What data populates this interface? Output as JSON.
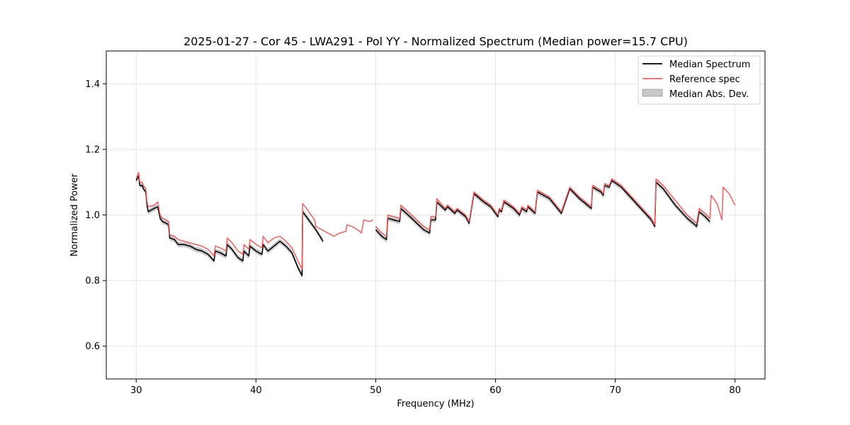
{
  "chart_data": {
    "type": "line",
    "title": "2025-01-27 - Cor 45 - LWA291 - Pol YY - Normalized Spectrum (Median power=15.7 CPU)",
    "xlabel": "Frequency (MHz)",
    "ylabel": "Normalized Power",
    "xlim": [
      27.5,
      82.5
    ],
    "ylim": [
      0.5,
      1.5
    ],
    "xticks": [
      30,
      40,
      50,
      60,
      70,
      80
    ],
    "yticks": [
      0.6,
      0.8,
      1.0,
      1.2,
      1.4
    ],
    "xtick_labels": [
      "30",
      "40",
      "50",
      "60",
      "70",
      "80"
    ],
    "ytick_labels": [
      "0.6",
      "0.8",
      "1.0",
      "1.2",
      "1.4"
    ],
    "grid": true,
    "legend_position": "top-right",
    "legend": {
      "median": "Median Spectrum",
      "reference": "Reference spec",
      "mad": "Median Abs. Dev."
    },
    "colors": {
      "median": "#000000",
      "reference": "#f06060",
      "mad": "#c8c8c8",
      "grid": "#e4e4e4"
    },
    "series": [
      {
        "name": "Median Spectrum",
        "mad_width": 0.008,
        "segments": [
          [
            [
              30.0,
              1.105
            ],
            [
              30.2,
              1.12
            ],
            [
              30.3,
              1.09
            ],
            [
              30.5,
              1.09
            ],
            [
              30.6,
              1.08
            ],
            [
              30.8,
              1.07
            ],
            [
              30.9,
              1.03
            ],
            [
              31.0,
              1.01
            ],
            [
              31.5,
              1.02
            ],
            [
              31.8,
              1.025
            ],
            [
              32.0,
              0.99
            ],
            [
              32.2,
              0.98
            ],
            [
              32.5,
              0.975
            ],
            [
              32.7,
              0.97
            ],
            [
              32.8,
              0.93
            ],
            [
              33.2,
              0.925
            ],
            [
              33.5,
              0.91
            ],
            [
              34.0,
              0.91
            ],
            [
              34.5,
              0.905
            ],
            [
              35.0,
              0.895
            ],
            [
              35.5,
              0.89
            ],
            [
              36.0,
              0.88
            ],
            [
              36.5,
              0.86
            ],
            [
              36.6,
              0.89
            ],
            [
              37.0,
              0.885
            ],
            [
              37.5,
              0.875
            ],
            [
              37.6,
              0.91
            ],
            [
              38.0,
              0.895
            ],
            [
              38.5,
              0.87
            ],
            [
              38.9,
              0.86
            ],
            [
              39.0,
              0.89
            ],
            [
              39.4,
              0.875
            ],
            [
              39.5,
              0.905
            ],
            [
              40.0,
              0.89
            ],
            [
              40.5,
              0.88
            ],
            [
              40.6,
              0.91
            ],
            [
              41.0,
              0.89
            ],
            [
              41.5,
              0.905
            ],
            [
              42.0,
              0.92
            ],
            [
              42.5,
              0.905
            ],
            [
              43.0,
              0.885
            ],
            [
              43.5,
              0.84
            ],
            [
              43.85,
              0.815
            ],
            [
              43.9,
              1.01
            ],
            [
              44.5,
              0.98
            ],
            [
              45.0,
              0.955
            ],
            [
              45.6,
              0.92
            ]
          ],
          [
            [
              50.0,
              0.955
            ],
            [
              50.5,
              0.935
            ],
            [
              50.9,
              0.925
            ],
            [
              51.0,
              0.99
            ],
            [
              51.5,
              0.985
            ],
            [
              52.0,
              0.98
            ],
            [
              52.1,
              1.02
            ],
            [
              53.0,
              0.99
            ],
            [
              54.0,
              0.955
            ],
            [
              54.5,
              0.945
            ],
            [
              54.6,
              0.985
            ],
            [
              55.0,
              0.985
            ],
            [
              55.1,
              1.04
            ],
            [
              55.8,
              1.015
            ],
            [
              56.0,
              1.025
            ],
            [
              56.6,
              1.005
            ],
            [
              56.8,
              1.015
            ],
            [
              57.5,
              0.995
            ],
            [
              57.8,
              0.975
            ],
            [
              58.2,
              1.065
            ],
            [
              59.0,
              1.04
            ],
            [
              59.6,
              1.025
            ],
            [
              60.2,
              0.995
            ],
            [
              60.3,
              1.015
            ],
            [
              60.5,
              1.01
            ],
            [
              60.7,
              1.04
            ],
            [
              61.5,
              1.02
            ],
            [
              62.0,
              1.0
            ],
            [
              62.2,
              1.02
            ],
            [
              62.6,
              1.01
            ],
            [
              62.7,
              1.025
            ],
            [
              63.3,
              1.005
            ],
            [
              63.5,
              1.07
            ],
            [
              64.5,
              1.05
            ],
            [
              65.5,
              1.005
            ],
            [
              66.2,
              1.08
            ],
            [
              67.0,
              1.05
            ],
            [
              68.0,
              1.02
            ],
            [
              68.1,
              1.085
            ],
            [
              68.8,
              1.07
            ],
            [
              69.0,
              1.06
            ],
            [
              69.1,
              1.09
            ],
            [
              69.5,
              1.085
            ],
            [
              69.7,
              1.105
            ],
            [
              70.5,
              1.085
            ],
            [
              71.0,
              1.065
            ],
            [
              72.0,
              1.025
            ],
            [
              73.0,
              0.985
            ],
            [
              73.3,
              0.965
            ],
            [
              73.4,
              1.1
            ],
            [
              74.0,
              1.08
            ],
            [
              75.0,
              1.03
            ],
            [
              76.0,
              0.99
            ],
            [
              76.5,
              0.975
            ],
            [
              76.8,
              0.965
            ],
            [
              77.0,
              1.01
            ],
            [
              77.5,
              0.995
            ],
            [
              77.9,
              0.98
            ]
          ]
        ]
      },
      {
        "name": "Reference spec",
        "segments": [
          [
            [
              30.0,
              1.11
            ],
            [
              30.2,
              1.13
            ],
            [
              30.3,
              1.1
            ],
            [
              30.5,
              1.1
            ],
            [
              30.6,
              1.09
            ],
            [
              30.8,
              1.08
            ],
            [
              30.9,
              1.04
            ],
            [
              31.0,
              1.025
            ],
            [
              31.5,
              1.03
            ],
            [
              31.8,
              1.04
            ],
            [
              32.0,
              1.0
            ],
            [
              32.2,
              0.99
            ],
            [
              32.5,
              0.985
            ],
            [
              32.7,
              0.98
            ],
            [
              32.8,
              0.94
            ],
            [
              33.2,
              0.935
            ],
            [
              33.5,
              0.925
            ],
            [
              34.0,
              0.92
            ],
            [
              34.5,
              0.915
            ],
            [
              35.0,
              0.91
            ],
            [
              35.5,
              0.905
            ],
            [
              36.0,
              0.895
            ],
            [
              36.5,
              0.875
            ],
            [
              36.6,
              0.905
            ],
            [
              37.0,
              0.9
            ],
            [
              37.5,
              0.89
            ],
            [
              37.6,
              0.93
            ],
            [
              38.0,
              0.915
            ],
            [
              38.5,
              0.89
            ],
            [
              38.9,
              0.88
            ],
            [
              39.0,
              0.91
            ],
            [
              39.4,
              0.895
            ],
            [
              39.5,
              0.925
            ],
            [
              40.0,
              0.91
            ],
            [
              40.5,
              0.9
            ],
            [
              40.6,
              0.935
            ],
            [
              41.0,
              0.915
            ],
            [
              41.5,
              0.93
            ],
            [
              42.0,
              0.935
            ],
            [
              42.5,
              0.92
            ],
            [
              43.0,
              0.9
            ],
            [
              43.5,
              0.86
            ],
            [
              43.85,
              0.835
            ],
            [
              43.9,
              1.035
            ],
            [
              44.5,
              1.005
            ],
            [
              44.9,
              0.985
            ],
            [
              45.0,
              0.965
            ],
            [
              45.5,
              0.955
            ],
            [
              46.0,
              0.945
            ],
            [
              46.5,
              0.935
            ],
            [
              47.0,
              0.945
            ],
            [
              47.5,
              0.95
            ],
            [
              47.6,
              0.97
            ],
            [
              48.0,
              0.965
            ],
            [
              48.5,
              0.955
            ],
            [
              48.8,
              0.945
            ],
            [
              49.0,
              0.985
            ],
            [
              49.5,
              0.98
            ],
            [
              49.8,
              0.985
            ]
          ],
          [
            [
              50.0,
              0.965
            ],
            [
              50.5,
              0.945
            ],
            [
              50.9,
              0.935
            ],
            [
              51.0,
              1.0
            ],
            [
              51.5,
              0.995
            ],
            [
              52.0,
              0.99
            ],
            [
              52.1,
              1.03
            ],
            [
              53.0,
              1.0
            ],
            [
              54.0,
              0.965
            ],
            [
              54.5,
              0.955
            ],
            [
              54.6,
              0.995
            ],
            [
              55.0,
              0.995
            ],
            [
              55.1,
              1.05
            ],
            [
              55.8,
              1.02
            ],
            [
              56.0,
              1.03
            ],
            [
              56.6,
              1.01
            ],
            [
              56.8,
              1.02
            ],
            [
              57.5,
              1.0
            ],
            [
              57.8,
              0.98
            ],
            [
              58.2,
              1.07
            ],
            [
              59.0,
              1.045
            ],
            [
              59.6,
              1.03
            ],
            [
              60.2,
              1.0
            ],
            [
              60.3,
              1.02
            ],
            [
              60.5,
              1.015
            ],
            [
              60.7,
              1.045
            ],
            [
              61.5,
              1.025
            ],
            [
              62.0,
              1.005
            ],
            [
              62.2,
              1.025
            ],
            [
              62.6,
              1.015
            ],
            [
              62.7,
              1.03
            ],
            [
              63.3,
              1.01
            ],
            [
              63.5,
              1.075
            ],
            [
              64.5,
              1.055
            ],
            [
              65.5,
              1.01
            ],
            [
              66.2,
              1.085
            ],
            [
              67.0,
              1.055
            ],
            [
              68.0,
              1.025
            ],
            [
              68.1,
              1.09
            ],
            [
              68.8,
              1.075
            ],
            [
              69.0,
              1.065
            ],
            [
              69.1,
              1.095
            ],
            [
              69.5,
              1.09
            ],
            [
              69.7,
              1.11
            ],
            [
              70.5,
              1.09
            ],
            [
              71.0,
              1.07
            ],
            [
              72.0,
              1.03
            ],
            [
              73.0,
              0.99
            ],
            [
              73.3,
              0.97
            ],
            [
              73.4,
              1.11
            ],
            [
              74.0,
              1.09
            ],
            [
              75.0,
              1.045
            ],
            [
              76.0,
              1.0
            ],
            [
              76.5,
              0.985
            ],
            [
              76.8,
              0.975
            ],
            [
              77.0,
              1.02
            ],
            [
              77.5,
              1.005
            ],
            [
              77.9,
              0.99
            ],
            [
              78.0,
              1.06
            ],
            [
              78.5,
              1.035
            ],
            [
              78.9,
              0.985
            ],
            [
              79.0,
              1.085
            ],
            [
              79.5,
              1.065
            ],
            [
              80.0,
              1.03
            ]
          ]
        ]
      }
    ]
  }
}
